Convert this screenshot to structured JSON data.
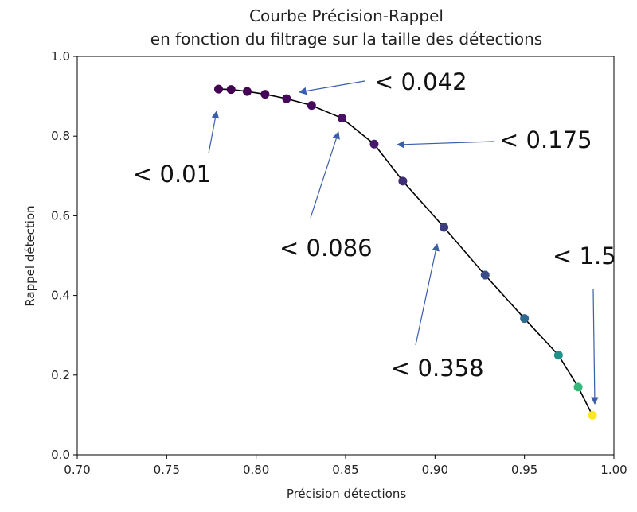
{
  "chart_data": {
    "type": "scatter",
    "title": [
      "Courbe Précision-Rappel",
      "en fonction du filtrage sur la taille des détections"
    ],
    "xlabel": "Précision détections",
    "ylabel": "Rappel détection",
    "xlim": [
      0.7,
      1.0
    ],
    "ylim": [
      0.0,
      1.0
    ],
    "x_ticks": [
      "0.70",
      "0.75",
      "0.80",
      "0.85",
      "0.90",
      "0.95",
      "1.00"
    ],
    "y_ticks": [
      "0.0",
      "0.2",
      "0.4",
      "0.6",
      "0.8",
      "1.0"
    ],
    "grid": false,
    "line_color": "#000000",
    "arrow_color": "#3b5ea8",
    "points": [
      {
        "x": 0.779,
        "y": 0.918,
        "color": "#440154"
      },
      {
        "x": 0.786,
        "y": 0.917,
        "color": "#440154"
      },
      {
        "x": 0.795,
        "y": 0.912,
        "color": "#440356"
      },
      {
        "x": 0.805,
        "y": 0.905,
        "color": "#450559"
      },
      {
        "x": 0.817,
        "y": 0.894,
        "color": "#46075a"
      },
      {
        "x": 0.831,
        "y": 0.877,
        "color": "#470b5e"
      },
      {
        "x": 0.848,
        "y": 0.845,
        "color": "#471063"
      },
      {
        "x": 0.866,
        "y": 0.78,
        "color": "#461a6b"
      },
      {
        "x": 0.882,
        "y": 0.687,
        "color": "#412d76"
      },
      {
        "x": 0.905,
        "y": 0.571,
        "color": "#3c3c7e"
      },
      {
        "x": 0.928,
        "y": 0.451,
        "color": "#3a4c87"
      },
      {
        "x": 0.95,
        "y": 0.342,
        "color": "#31688e"
      },
      {
        "x": 0.969,
        "y": 0.25,
        "color": "#21918c"
      },
      {
        "x": 0.98,
        "y": 0.17,
        "color": "#35b779"
      },
      {
        "x": 0.988,
        "y": 0.099,
        "color": "#fde725"
      }
    ],
    "annotations": [
      {
        "text": "< 0.01",
        "point": 0
      },
      {
        "text": "< 0.042",
        "point": 4
      },
      {
        "text": "< 0.086",
        "point": 6
      },
      {
        "text": "< 0.175",
        "point": 7
      },
      {
        "text": "< 0.358",
        "point": 9
      },
      {
        "text": "< 1.5",
        "point": 14
      }
    ]
  }
}
